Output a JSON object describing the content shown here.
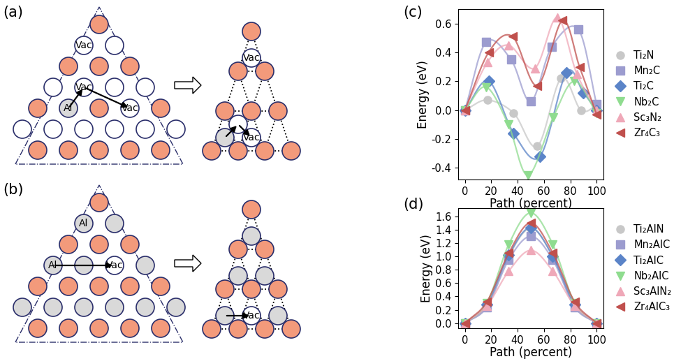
{
  "diagrams": {
    "a": {
      "label": "(a)",
      "left": [
        "Vac",
        "Vac",
        "Al",
        "Vac"
      ],
      "right": [
        "Vac",
        "Vac"
      ]
    },
    "b": {
      "label": "(b)",
      "left": [
        "Al",
        "Al",
        "Vac"
      ],
      "right": [
        "Vac"
      ]
    }
  },
  "chart_data": [
    {
      "type": "line",
      "label": "(c)",
      "xlabel": "Path (percent)",
      "ylabel": "Energy (eV)",
      "xlim": [
        -5,
        105
      ],
      "ylim": [
        -0.48,
        0.7
      ],
      "xticks": [
        0,
        20,
        40,
        60,
        80,
        100
      ],
      "yticks": [
        -0.4,
        -0.2,
        {
          "value": 0,
          "label": "0.0"
        },
        0.2,
        0.4,
        0.6
      ],
      "legend": "center left",
      "series": [
        {
          "name": "Ti₂N",
          "color": "#c8c8c8",
          "marker": "circle",
          "x": [
            0,
            17,
            37,
            55,
            73,
            88,
            100
          ],
          "values": [
            0,
            0.07,
            -0.02,
            -0.25,
            0.22,
            0.0,
            0.03
          ]
        },
        {
          "name": "Mn₂C",
          "color": "#9c9ccf",
          "marker": "square",
          "x": [
            0,
            16,
            35,
            50,
            66,
            86,
            100
          ],
          "values": [
            0,
            0.47,
            0.35,
            0.06,
            0.44,
            0.56,
            0.04
          ]
        },
        {
          "name": "Ti₂C",
          "color": "#5b84c8",
          "marker": "diamond",
          "x": [
            0,
            18,
            37,
            57,
            77,
            90,
            100
          ],
          "values": [
            0,
            0.2,
            -0.16,
            -0.32,
            0.26,
            0.12,
            0.0
          ]
        },
        {
          "name": "Nb₂C",
          "color": "#8fdc8f",
          "marker": "triangle_down",
          "x": [
            0,
            16,
            33,
            48,
            67,
            83,
            100
          ],
          "values": [
            0,
            0.16,
            -0.1,
            -0.45,
            -0.05,
            0.2,
            -0.02
          ]
        },
        {
          "name": "Sc₃N₂",
          "color": "#efa8b8",
          "marker": "triangle_up",
          "x": [
            0,
            17,
            33,
            53,
            70,
            85,
            100
          ],
          "values": [
            0,
            0.33,
            0.45,
            0.29,
            0.64,
            0.25,
            0.0
          ]
        },
        {
          "name": "Zr₄C₃",
          "color": "#c0504d",
          "marker": "triangle_left",
          "x": [
            0,
            18,
            36,
            55,
            74,
            87,
            100
          ],
          "values": [
            0,
            0.4,
            0.51,
            0.17,
            0.62,
            0.3,
            -0.03
          ]
        }
      ]
    },
    {
      "type": "line",
      "label": "(d)",
      "xlabel": "Path (percent)",
      "ylabel": "Energy (eV)",
      "xlim": [
        -5,
        105
      ],
      "ylim": [
        -0.08,
        1.72
      ],
      "xticks": [
        0,
        20,
        40,
        60,
        80,
        100
      ],
      "yticks": [
        {
          "value": 0,
          "label": "0.0"
        },
        0.2,
        0.4,
        0.6,
        0.8,
        {
          "value": 1,
          "label": "1.0"
        },
        1.2,
        1.4,
        1.6
      ],
      "legend": "center left",
      "series": [
        {
          "name": "Ti₂AlN",
          "color": "#c8c8c8",
          "marker": "circle",
          "x": [
            0,
            16.7,
            33.3,
            50,
            66.7,
            83.3,
            100
          ],
          "values": [
            0,
            0.25,
            1.0,
            1.42,
            1.0,
            0.25,
            0
          ]
        },
        {
          "name": "Mn₂AlC",
          "color": "#9c9ccf",
          "marker": "square",
          "x": [
            0,
            16.7,
            33.3,
            50,
            66.7,
            83.3,
            100
          ],
          "values": [
            0,
            0.24,
            0.95,
            1.3,
            0.95,
            0.24,
            0
          ]
        },
        {
          "name": "Ti₂AlC",
          "color": "#5b84c8",
          "marker": "diamond",
          "x": [
            0,
            16.7,
            33.3,
            50,
            66.7,
            83.3,
            100
          ],
          "values": [
            0,
            0.28,
            1.02,
            1.43,
            1.0,
            0.28,
            0
          ]
        },
        {
          "name": "Nb₂AlC",
          "color": "#8fdc8f",
          "marker": "triangle_down",
          "x": [
            0,
            16.7,
            33.3,
            50,
            66.7,
            83.3,
            100
          ],
          "values": [
            0,
            0.3,
            1.18,
            1.65,
            1.18,
            0.3,
            0
          ]
        },
        {
          "name": "Sc₃AlN₂",
          "color": "#efa8b8",
          "marker": "triangle_up",
          "x": [
            0,
            16.7,
            33.3,
            50,
            66.7,
            83.3,
            100
          ],
          "values": [
            0,
            0.26,
            0.78,
            1.09,
            0.78,
            0.26,
            0
          ]
        },
        {
          "name": "Zr₄AlC₃",
          "color": "#c0504d",
          "marker": "triangle_left",
          "x": [
            0,
            16.7,
            33.3,
            50,
            66.7,
            83.3,
            100
          ],
          "values": [
            0,
            0.32,
            1.05,
            1.5,
            1.05,
            0.32,
            0
          ]
        }
      ]
    }
  ]
}
